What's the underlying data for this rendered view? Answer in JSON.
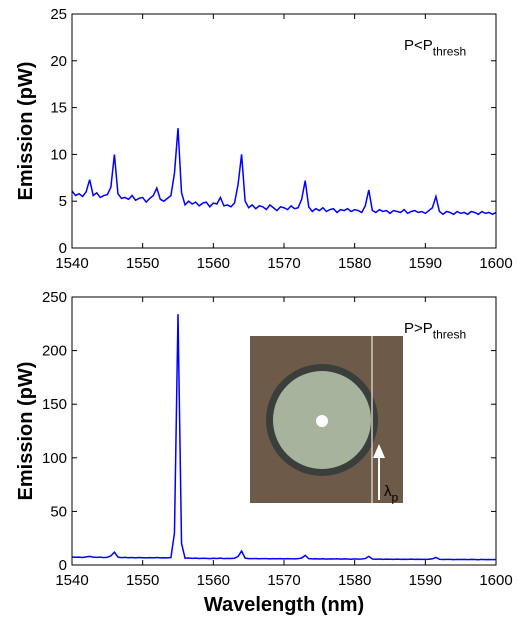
{
  "chart_data": [
    {
      "type": "line",
      "ylabel": "Emission (pW)",
      "annotation": {
        "text": "P<P",
        "subscript": "thresh"
      },
      "color": "#0000ff",
      "grid": false,
      "xlim": [
        1540,
        1600
      ],
      "xticks": [
        1540,
        1550,
        1560,
        1570,
        1580,
        1590,
        1600
      ],
      "ylim": [
        0,
        25
      ],
      "yticks": [
        0,
        5,
        10,
        15,
        20,
        25
      ],
      "x": [
        1540,
        1540.5,
        1541,
        1541.5,
        1542,
        1542.5,
        1543,
        1543.5,
        1544,
        1544.5,
        1545,
        1545.5,
        1546,
        1546.5,
        1547,
        1547.5,
        1548,
        1548.5,
        1549,
        1549.5,
        1550,
        1550.5,
        1551,
        1551.5,
        1552,
        1552.5,
        1553,
        1553.5,
        1554,
        1554.5,
        1555,
        1555.5,
        1556,
        1556.5,
        1557,
        1557.5,
        1558,
        1558.5,
        1559,
        1559.5,
        1560,
        1560.5,
        1561,
        1561.5,
        1562,
        1562.5,
        1563,
        1563.5,
        1564,
        1564.5,
        1565,
        1565.5,
        1566,
        1566.5,
        1567,
        1567.5,
        1568,
        1568.5,
        1569,
        1569.5,
        1570,
        1570.5,
        1571,
        1571.5,
        1572,
        1572.5,
        1573,
        1573.5,
        1574,
        1574.5,
        1575,
        1575.5,
        1576,
        1576.5,
        1577,
        1577.5,
        1578,
        1578.5,
        1579,
        1579.5,
        1580,
        1580.5,
        1581,
        1581.5,
        1582,
        1582.5,
        1583,
        1583.5,
        1584,
        1584.5,
        1585,
        1585.5,
        1586,
        1586.5,
        1587,
        1587.5,
        1588,
        1588.5,
        1589,
        1589.5,
        1590,
        1590.5,
        1591,
        1591.5,
        1592,
        1592.5,
        1593,
        1593.5,
        1594,
        1594.5,
        1595,
        1595.5,
        1596,
        1596.5,
        1597,
        1597.5,
        1598,
        1598.5,
        1599,
        1599.5,
        1600
      ],
      "values": [
        6.1,
        5.6,
        5.8,
        5.5,
        6.0,
        7.3,
        5.6,
        5.9,
        5.4,
        5.6,
        5.7,
        6.5,
        10.0,
        5.8,
        5.3,
        5.4,
        5.2,
        5.6,
        5.1,
        5.3,
        5.4,
        4.9,
        5.3,
        5.6,
        6.4,
        5.2,
        5.0,
        5.3,
        5.6,
        8.0,
        12.8,
        5.9,
        4.6,
        5.0,
        4.7,
        4.9,
        4.5,
        4.8,
        4.9,
        4.4,
        4.8,
        4.7,
        5.4,
        4.5,
        4.6,
        4.4,
        4.8,
        6.8,
        10.0,
        5.0,
        4.3,
        4.6,
        4.2,
        4.5,
        4.4,
        4.1,
        4.6,
        4.3,
        4.0,
        4.4,
        4.3,
        4.1,
        4.5,
        4.2,
        4.3,
        5.2,
        7.2,
        4.4,
        3.9,
        4.2,
        4.0,
        4.3,
        3.9,
        4.1,
        4.2,
        3.8,
        4.1,
        4.0,
        4.2,
        3.9,
        4.1,
        4.0,
        3.8,
        4.5,
        6.2,
        4.0,
        3.8,
        4.1,
        3.9,
        4.0,
        3.7,
        4.0,
        3.9,
        3.8,
        4.1,
        3.7,
        3.9,
        4.0,
        3.8,
        3.9,
        3.7,
        4.0,
        4.3,
        5.5,
        3.9,
        3.6,
        3.9,
        3.8,
        3.6,
        3.9,
        3.7,
        3.8,
        3.6,
        3.9,
        3.8,
        3.6,
        3.9,
        3.7,
        3.8,
        3.6,
        3.8
      ]
    },
    {
      "type": "line",
      "ylabel": "Emission (pW)",
      "xlabel": "Wavelength (nm)",
      "annotation": {
        "text": "P>P",
        "subscript": "thresh"
      },
      "inset_label": {
        "text": "λ",
        "subscript": "p"
      },
      "color": "#0000ff",
      "grid": false,
      "xlim": [
        1540,
        1600
      ],
      "xticks": [
        1540,
        1550,
        1560,
        1570,
        1580,
        1590,
        1600
      ],
      "ylim": [
        0,
        250
      ],
      "yticks": [
        0,
        50,
        100,
        150,
        200,
        250
      ],
      "x": [
        1540,
        1540.5,
        1541,
        1541.5,
        1542,
        1542.5,
        1543,
        1543.5,
        1544,
        1544.5,
        1545,
        1545.5,
        1546,
        1546.5,
        1547,
        1547.5,
        1548,
        1548.5,
        1549,
        1549.5,
        1550,
        1550.5,
        1551,
        1551.5,
        1552,
        1552.5,
        1553,
        1553.5,
        1554,
        1554.5,
        1555,
        1555.5,
        1556,
        1556.5,
        1557,
        1557.5,
        1558,
        1558.5,
        1559,
        1559.5,
        1560,
        1560.5,
        1561,
        1561.5,
        1562,
        1562.5,
        1563,
        1563.5,
        1564,
        1564.5,
        1565,
        1565.5,
        1566,
        1566.5,
        1567,
        1567.5,
        1568,
        1568.5,
        1569,
        1569.5,
        1570,
        1570.5,
        1571,
        1571.5,
        1572,
        1572.5,
        1573,
        1573.5,
        1574,
        1574.5,
        1575,
        1575.5,
        1576,
        1576.5,
        1577,
        1577.5,
        1578,
        1578.5,
        1579,
        1579.5,
        1580,
        1580.5,
        1581,
        1581.5,
        1582,
        1582.5,
        1583,
        1583.5,
        1584,
        1584.5,
        1585,
        1585.5,
        1586,
        1586.5,
        1587,
        1587.5,
        1588,
        1588.5,
        1589,
        1589.5,
        1590,
        1590.5,
        1591,
        1591.5,
        1592,
        1592.5,
        1593,
        1593.5,
        1594,
        1594.5,
        1595,
        1595.5,
        1596,
        1596.5,
        1597,
        1597.5,
        1598,
        1598.5,
        1599,
        1599.5,
        1600
      ],
      "values": [
        7.5,
        7.2,
        7.4,
        7.0,
        7.6,
        8.0,
        7.3,
        7.1,
        7.4,
        6.9,
        7.2,
        8.5,
        12.0,
        7.4,
        6.9,
        7.1,
        6.8,
        7.0,
        6.7,
        7.0,
        6.8,
        6.6,
        6.9,
        6.7,
        7.0,
        6.6,
        6.8,
        6.7,
        6.9,
        30,
        234,
        20,
        6.3,
        6.5,
        6.2,
        6.4,
        6.1,
        6.3,
        6.2,
        6.0,
        6.3,
        6.1,
        6.4,
        6.0,
        6.2,
        6.1,
        6.3,
        8.0,
        13,
        6.4,
        6.0,
        5.9,
        6.1,
        5.8,
        6.0,
        5.9,
        5.7,
        6.0,
        5.8,
        5.9,
        5.7,
        6.0,
        5.8,
        5.7,
        5.9,
        6.5,
        9.0,
        5.9,
        5.7,
        5.8,
        5.6,
        5.8,
        5.5,
        5.7,
        5.6,
        5.8,
        5.5,
        5.7,
        5.6,
        5.4,
        5.7,
        5.5,
        5.6,
        6.0,
        8.0,
        5.6,
        5.4,
        5.6,
        5.3,
        5.5,
        5.4,
        5.2,
        5.5,
        5.3,
        5.4,
        5.2,
        5.5,
        5.3,
        5.4,
        5.2,
        5.3,
        5.4,
        5.8,
        7.0,
        5.3,
        5.1,
        5.3,
        5.2,
        5.0,
        5.3,
        5.1,
        5.2,
        5.0,
        5.2,
        5.1,
        4.9,
        5.2,
        5.0,
        5.1,
        5.0,
        5.1
      ]
    }
  ]
}
